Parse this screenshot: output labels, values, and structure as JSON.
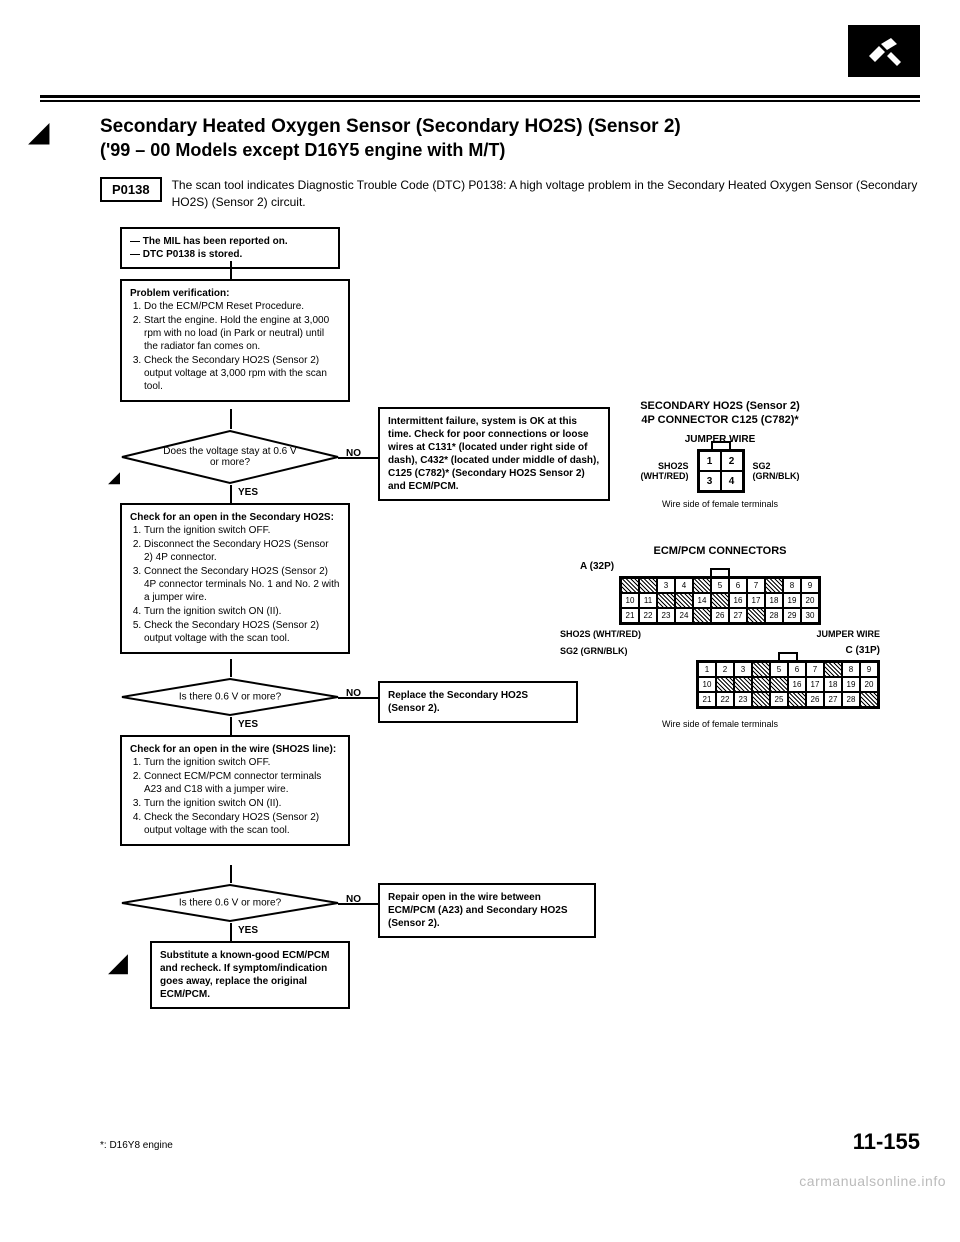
{
  "header": {
    "title": "Secondary Heated Oxygen Sensor (Secondary HO2S) (Sensor 2)",
    "subtitle": "('99 – 00 Models except D16Y5 engine with M/T)"
  },
  "dtc": {
    "code": "P0138",
    "description": "The scan tool indicates Diagnostic Trouble Code (DTC) P0138: A high voltage problem in the Secondary Heated Oxygen Sensor (Secondary HO2S) (Sensor 2) circuit."
  },
  "flow": {
    "start": "— The MIL has been reported on.\n— DTC P0138 is stored.",
    "box1_title": "Problem verification:",
    "box1_items": [
      "Do the ECM/PCM Reset Procedure.",
      "Start the engine. Hold the engine at 3,000 rpm with no load (in Park or neutral) until the radiator fan comes on.",
      "Check the Secondary HO2S (Sensor 2) output voltage at 3,000 rpm with the scan tool."
    ],
    "d1": "Does the voltage stay at 0.6 V or more?",
    "d1_no": "Intermittent failure, system is OK at this time. Check for poor connections or loose wires at C131* (located under right side of dash), C432* (located under middle of dash), C125 (C782)* (Secondary HO2S Sensor 2) and ECM/PCM.",
    "box2_title": "Check for an open in the Secondary HO2S:",
    "box2_items": [
      "Turn the ignition switch OFF.",
      "Disconnect the Secondary HO2S (Sensor 2) 4P connector.",
      "Connect the Secondary HO2S (Sensor 2) 4P connector terminals No. 1 and No. 2 with a jumper wire.",
      "Turn the ignition switch ON (II).",
      "Check the Secondary HO2S (Sensor 2) output voltage with the scan tool."
    ],
    "d2": "Is there 0.6 V or more?",
    "d2_no": "Replace the Secondary HO2S (Sensor 2).",
    "box3_title": "Check for an open in the wire (SHO2S line):",
    "box3_items": [
      "Turn the ignition switch OFF.",
      "Connect ECM/PCM connector terminals A23 and C18 with a jumper wire.",
      "Turn the ignition switch ON (II).",
      "Check the Secondary HO2S (Sensor 2) output voltage with the scan tool."
    ],
    "d3": "Is there 0.6 V or more?",
    "d3_no": "Repair open in the wire between ECM/PCM (A23) and Secondary HO2S (Sensor 2).",
    "box4": "Substitute a known-good ECM/PCM and recheck. If symptom/indication goes away, replace the original ECM/PCM.",
    "yes": "YES",
    "no": "NO"
  },
  "right": {
    "conn_title1": "SECONDARY HO2S (Sensor 2)",
    "conn_title2": "4P CONNECTOR C125 (C782)*",
    "jumper": "JUMPER WIRE",
    "left_wire": "SHO2S\n(WHT/RED)",
    "right_wire": "SG2\n(GRN/BLK)",
    "caption1": "Wire side of female terminals",
    "ecm_title": "ECM/PCM CONNECTORS",
    "a32": "A (32P)",
    "sho2s_label": "SHO2S (WHT/RED)",
    "jumper2": "JUMPER WIRE",
    "sg2_label": "SG2 (GRN/BLK)",
    "c31": "C (31P)",
    "caption2": "Wire side of female terminals"
  },
  "footnote": "*: D16Y8 engine",
  "page": "11-155",
  "watermark": "carmanualsonline.info"
}
